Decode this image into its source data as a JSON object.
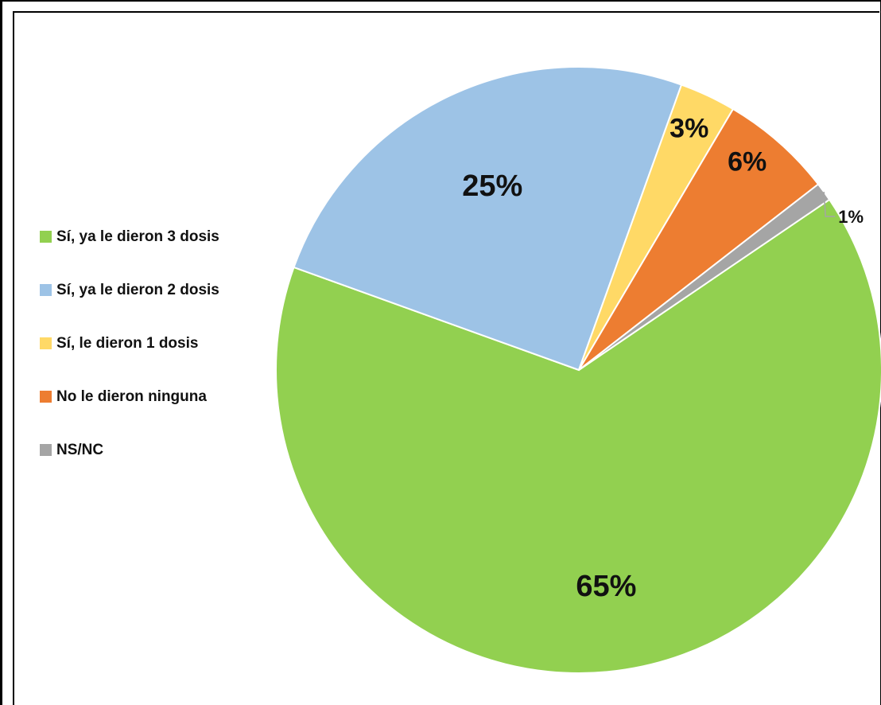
{
  "chart_data": {
    "type": "pie",
    "title": "",
    "slices": [
      {
        "name": "Sí, ya le dieron 3 dosis",
        "value": 65,
        "label": "65%",
        "color": "#92d050"
      },
      {
        "name": "Sí, ya le dieron 2 dosis",
        "value": 25,
        "label": "25%",
        "color": "#9dc3e6"
      },
      {
        "name": "Sí, le dieron 1 dosis",
        "value": 3,
        "label": "3%",
        "color": "#ffd966"
      },
      {
        "name": "No le dieron ninguna",
        "value": 6,
        "label": "6%",
        "color": "#ed7d31"
      },
      {
        "name": "NS/NC",
        "value": 1,
        "label": "1%",
        "color": "#a5a5a5"
      }
    ],
    "legend_position": "left",
    "start_angle_deg": 55.8,
    "direction": "clockwise"
  },
  "legend": {
    "items": [
      {
        "label": "Sí, ya le dieron 3 dosis",
        "color": "#92d050"
      },
      {
        "label": "Sí, ya le dieron 2 dosis",
        "color": "#9dc3e6"
      },
      {
        "label": "Sí, le dieron 1 dosis",
        "color": "#ffd966"
      },
      {
        "label": "No le dieron ninguna",
        "color": "#ed7d31"
      },
      {
        "label": "NS/NC",
        "color": "#a5a5a5"
      }
    ]
  }
}
